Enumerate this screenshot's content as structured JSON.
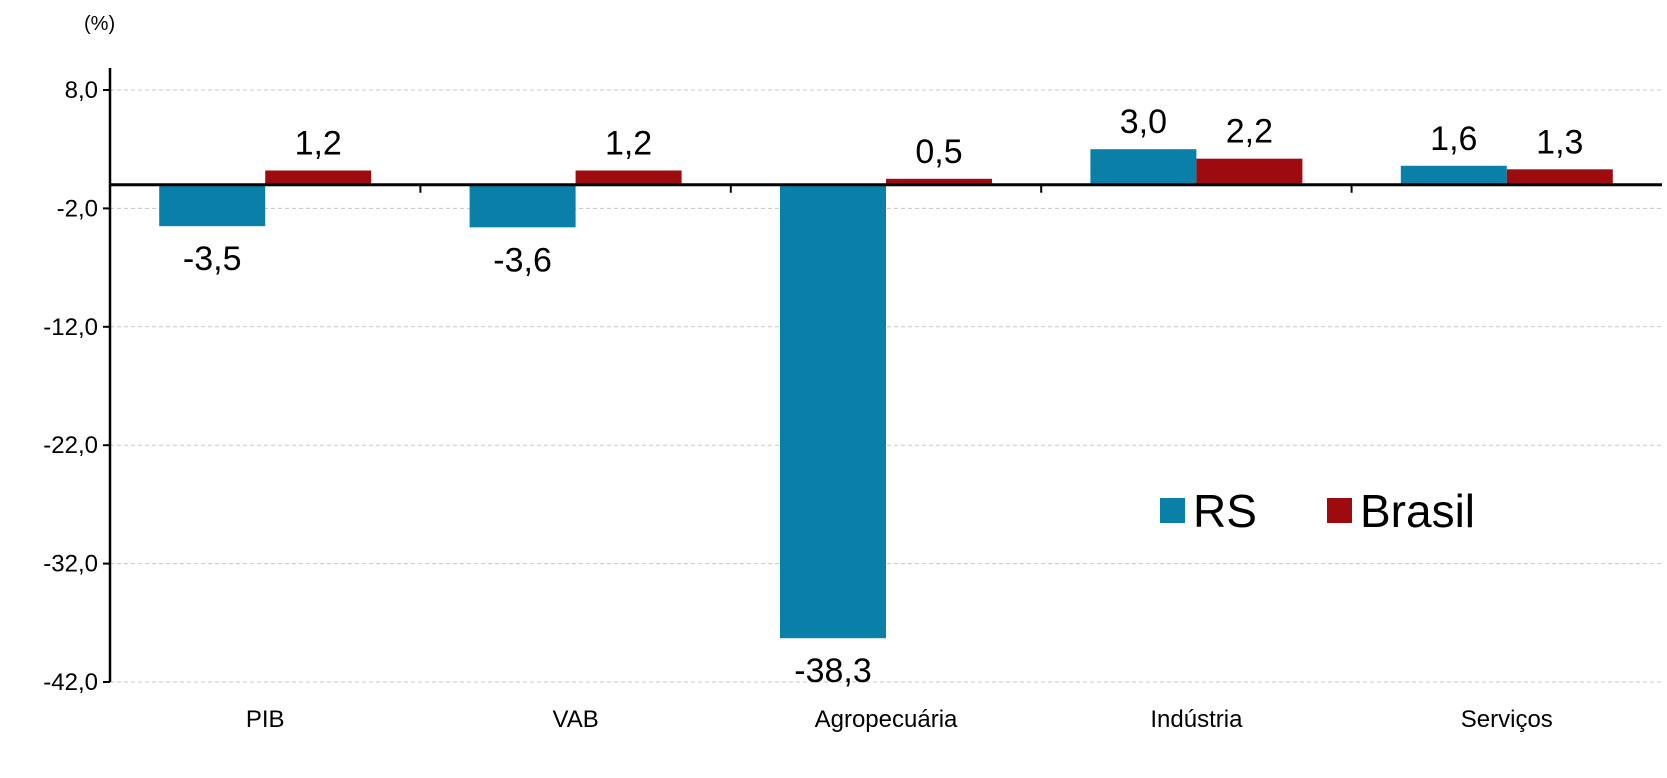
{
  "chart_data": {
    "type": "bar",
    "unit_label": "(%)",
    "categories": [
      "PIB",
      "VAB",
      "Agropecuária",
      "Indústria",
      "Serviços"
    ],
    "series": [
      {
        "name": "RS",
        "color": "#0a7fa8",
        "values": [
          -3.5,
          -3.6,
          -38.3,
          3.0,
          1.6
        ],
        "labels": [
          "-3,5",
          "-3,6",
          "-38,3",
          "3,0",
          "1,6"
        ]
      },
      {
        "name": "Brasil",
        "color": "#9e0b0f",
        "values": [
          1.2,
          1.2,
          0.5,
          2.2,
          1.3
        ],
        "labels": [
          "1,2",
          "1,2",
          "0,5",
          "2,2",
          "1,3"
        ]
      }
    ],
    "ylim": [
      -42,
      8
    ],
    "yticks": [
      8,
      -2,
      -12,
      -22,
      -32,
      -42
    ],
    "ytick_labels": [
      "8,0",
      "-2,0",
      "-12,0",
      "-22,0",
      "-32,0",
      "-42,0"
    ],
    "grid": true,
    "legend": "lower-right inside"
  }
}
